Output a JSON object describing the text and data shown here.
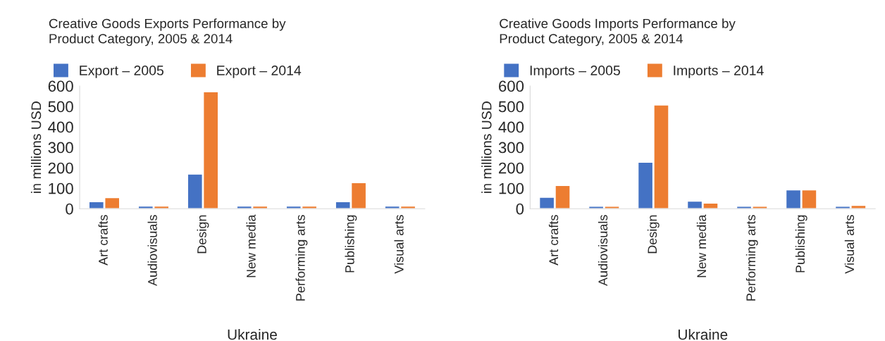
{
  "chart_data": [
    {
      "type": "bar",
      "title": "Creative Goods Exports Performance by\nProduct Category, 2005 & 2014",
      "xlabel": "Ukraine",
      "ylabel": "in millions USD",
      "categories": [
        "Art crafts",
        "Audiovisuals",
        "Design",
        "New media",
        "Performing arts",
        "Publishing",
        "Visual arts"
      ],
      "series": [
        {
          "name": "Export – 2005",
          "color": "#4472c4",
          "values": [
            34,
            13,
            169,
            13,
            13,
            34,
            13
          ]
        },
        {
          "name": "Export – 2014",
          "color": "#ed7d31",
          "values": [
            54,
            13,
            571,
            13,
            13,
            127,
            13
          ]
        }
      ],
      "ylim": [
        0,
        600
      ],
      "yticks": [
        0,
        100,
        200,
        300,
        400,
        500,
        600
      ],
      "grid": false,
      "legend": "top left"
    },
    {
      "type": "bar",
      "title": "Creative Goods Imports Performance by\nProduct Category, 2005 & 2014",
      "xlabel": "Ukraine",
      "ylabel": "in millions USD",
      "categories": [
        "Art crafts",
        "Audiovisuals",
        "Design",
        "New media",
        "Performing arts",
        "Publishing",
        "Visual arts"
      ],
      "series": [
        {
          "name": "Imports – 2005",
          "color": "#4472c4",
          "values": [
            56,
            12,
            227,
            37,
            12,
            92,
            12
          ]
        },
        {
          "name": "Imports – 2014",
          "color": "#ed7d31",
          "values": [
            113,
            12,
            507,
            27,
            12,
            92,
            16
          ]
        }
      ],
      "ylim": [
        0,
        600
      ],
      "yticks": [
        0,
        100,
        200,
        300,
        400,
        500,
        600
      ],
      "grid": false,
      "legend": "top left"
    }
  ]
}
